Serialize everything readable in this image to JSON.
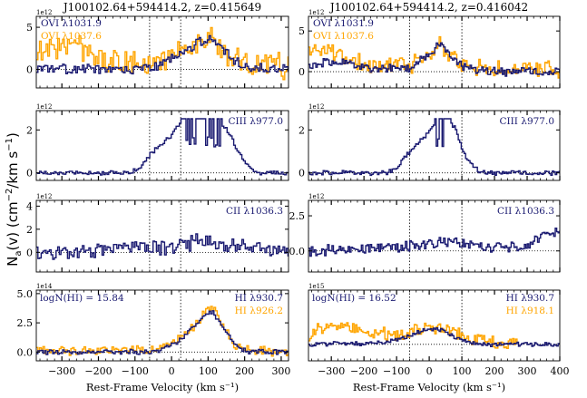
{
  "colors": {
    "primary": "#191970",
    "secondary": "#FFA500",
    "frame": "#000000"
  },
  "chart_data": {
    "type": "line",
    "ylabel": "N_a(v) (cm⁻²/km s⁻¹)",
    "ylabel_parts": {
      "n": "N",
      "a": "a",
      "rest": "(v) (cm",
      "m2": "−2",
      "mid": "/km s",
      "m1": "−1",
      "end": ")"
    },
    "xlabel": "Rest-Frame Velocity (km s⁻¹)",
    "columns": [
      {
        "title": "J100102.64+594414.2, z=0.415649",
        "xlim": [
          -370,
          320
        ],
        "xticks": [
          "-300",
          "-200",
          "-100",
          "0",
          "100",
          "200",
          "300"
        ],
        "vlines": [
          -60,
          25
        ],
        "panels": [
          {
            "ion": "OVI",
            "exp": "1e12",
            "ylim": [
              -2.2,
              6.3
            ],
            "yticks": [
              "0",
              "5"
            ],
            "series": [
              {
                "name": "OVI λ1031.9",
                "color": "primary",
                "profile": [
                  [
                    -370,
                    0
                  ],
                  [
                    -100,
                    0
                  ],
                  [
                    -50,
                    0.3
                  ],
                  [
                    0,
                    1.3
                  ],
                  [
                    40,
                    2.3
                  ],
                  [
                    80,
                    3.4
                  ],
                  [
                    105,
                    3.7
                  ],
                  [
                    130,
                    3.0
                  ],
                  [
                    160,
                    1.4
                  ],
                  [
                    200,
                    0.3
                  ],
                  [
                    320,
                    0
                  ]
                ],
                "noise": 0.65,
                "seed": 11
              },
              {
                "name": "OVI λ1037.6",
                "color": "secondary",
                "profile": [
                  [
                    -370,
                    2.2
                  ],
                  [
                    -280,
                    2.8
                  ],
                  [
                    -200,
                    1.5
                  ],
                  [
                    -100,
                    0.6
                  ],
                  [
                    -30,
                    0.8
                  ],
                  [
                    30,
                    2.2
                  ],
                  [
                    80,
                    3.4
                  ],
                  [
                    110,
                    3.6
                  ],
                  [
                    150,
                    1.8
                  ],
                  [
                    200,
                    0.7
                  ],
                  [
                    320,
                    0.3
                  ]
                ],
                "noise": 1.7,
                "seed": 23
              }
            ]
          },
          {
            "ion": "CIII",
            "exp": "1e12",
            "ylim": [
              -0.35,
              2.9
            ],
            "yticks": [
              "0",
              "2"
            ],
            "series": [
              {
                "name": "CIII λ977.0",
                "color": "primary",
                "profile": [
                  [
                    -370,
                    0
                  ],
                  [
                    -130,
                    0
                  ],
                  [
                    -90,
                    0.2
                  ],
                  [
                    -70,
                    0.7
                  ],
                  [
                    -40,
                    1.2
                  ],
                  [
                    -10,
                    1.6
                  ],
                  [
                    10,
                    2.0
                  ],
                  [
                    30,
                    2.5
                  ],
                  [
                    130,
                    2.5
                  ],
                  [
                    150,
                    2.0
                  ],
                  [
                    180,
                    1.0
                  ],
                  [
                    210,
                    0.3
                  ],
                  [
                    240,
                    0
                  ],
                  [
                    320,
                    0
                  ]
                ],
                "noise": 0.12,
                "seed": 5,
                "sat": 2.52
              }
            ]
          },
          {
            "ion": "CII",
            "exp": "1e12",
            "ylim": [
              -1.7,
              4.5
            ],
            "yticks": [
              "0",
              "2",
              "4"
            ],
            "series": [
              {
                "name": "CII λ1036.3",
                "color": "primary",
                "profile": [
                  [
                    -370,
                    0
                  ],
                  [
                    -200,
                    0.1
                  ],
                  [
                    0,
                    0.4
                  ],
                  [
                    80,
                    1.0
                  ],
                  [
                    130,
                    0.7
                  ],
                  [
                    200,
                    0.4
                  ],
                  [
                    320,
                    0.2
                  ]
                ],
                "noise": 0.8,
                "seed": 41
              }
            ]
          },
          {
            "ion": "HI",
            "exp": "1e14",
            "ylim": [
              -0.75,
              5.3
            ],
            "yticks": [
              "0.0",
              "2.5",
              "5.0"
            ],
            "logn": "logN(HI) = 15.84",
            "series": [
              {
                "name": "HI λ930.7",
                "color": "primary",
                "profile": [
                  [
                    -370,
                    0
                  ],
                  [
                    -50,
                    0
                  ],
                  [
                    -20,
                    0.3
                  ],
                  [
                    20,
                    1.0
                  ],
                  [
                    60,
                    2.2
                  ],
                  [
                    90,
                    3.2
                  ],
                  [
                    110,
                    3.4
                  ],
                  [
                    140,
                    2.0
                  ],
                  [
                    170,
                    0.6
                  ],
                  [
                    200,
                    0.1
                  ],
                  [
                    320,
                    0
                  ]
                ],
                "noise": 0.25,
                "seed": 7
              },
              {
                "name": "HI λ926.2",
                "color": "secondary",
                "profile": [
                  [
                    -370,
                    0.1
                  ],
                  [
                    -50,
                    0.2
                  ],
                  [
                    0,
                    0.7
                  ],
                  [
                    60,
                    2.2
                  ],
                  [
                    90,
                    3.5
                  ],
                  [
                    115,
                    3.8
                  ],
                  [
                    140,
                    2.2
                  ],
                  [
                    170,
                    0.6
                  ],
                  [
                    210,
                    0.1
                  ],
                  [
                    320,
                    0
                  ]
                ],
                "noise": 0.45,
                "seed": 19
              }
            ]
          }
        ]
      },
      {
        "title": "J100102.64+594414.2, z=0.416042",
        "xlim": [
          -370,
          400
        ],
        "xticks": [
          "-300",
          "-200",
          "-100",
          "0",
          "100",
          "200",
          "300",
          "400"
        ],
        "vlines": [
          -60,
          100
        ],
        "panels": [
          {
            "ion": "OVI",
            "exp": "1e12",
            "ylim": [
              -2.0,
              6.8
            ],
            "yticks": [
              "0",
              "5"
            ],
            "series": [
              {
                "name": "OVI λ1031.9",
                "color": "primary",
                "profile": [
                  [
                    -370,
                    0.8
                  ],
                  [
                    -300,
                    1.2
                  ],
                  [
                    -150,
                    0.3
                  ],
                  [
                    -60,
                    0.5
                  ],
                  [
                    0,
                    2.2
                  ],
                  [
                    30,
                    3.4
                  ],
                  [
                    60,
                    2.2
                  ],
                  [
                    100,
                    0.7
                  ],
                  [
                    150,
                    0
                  ],
                  [
                    400,
                    0
                  ]
                ],
                "noise": 0.6,
                "seed": 13
              },
              {
                "name": "OVI λ1037.6",
                "color": "secondary",
                "profile": [
                  [
                    -370,
                    2.5
                  ],
                  [
                    -320,
                    3.0
                  ],
                  [
                    -250,
                    1.5
                  ],
                  [
                    -150,
                    0.6
                  ],
                  [
                    -50,
                    1.0
                  ],
                  [
                    0,
                    2.5
                  ],
                  [
                    30,
                    3.3
                  ],
                  [
                    70,
                    1.6
                  ],
                  [
                    120,
                    0.5
                  ],
                  [
                    400,
                    0.2
                  ]
                ],
                "noise": 1.2,
                "seed": 29
              }
            ]
          },
          {
            "ion": "CIII",
            "exp": "1e12",
            "ylim": [
              -0.35,
              2.9
            ],
            "yticks": [
              "0",
              "2"
            ],
            "series": [
              {
                "name": "CIII λ977.0",
                "color": "primary",
                "profile": [
                  [
                    -370,
                    0
                  ],
                  [
                    -130,
                    0
                  ],
                  [
                    -100,
                    0.2
                  ],
                  [
                    -80,
                    0.7
                  ],
                  [
                    -50,
                    1.2
                  ],
                  [
                    -20,
                    1.6
                  ],
                  [
                    0,
                    2.0
                  ],
                  [
                    20,
                    2.5
                  ],
                  [
                    60,
                    2.5
                  ],
                  [
                    80,
                    2.0
                  ],
                  [
                    100,
                    1.0
                  ],
                  [
                    130,
                    0.3
                  ],
                  [
                    160,
                    0
                  ],
                  [
                    400,
                    0
                  ]
                ],
                "noise": 0.12,
                "seed": 3,
                "sat": 2.52
              }
            ]
          },
          {
            "ion": "CII",
            "exp": "1e12",
            "ylim": [
              -1.5,
              3.6
            ],
            "yticks": [
              "0.0",
              "2.5"
            ],
            "series": [
              {
                "name": "CII λ1036.3",
                "color": "primary",
                "profile": [
                  [
                    -370,
                    0
                  ],
                  [
                    -200,
                    0.1
                  ],
                  [
                    0,
                    0.5
                  ],
                  [
                    80,
                    0.6
                  ],
                  [
                    200,
                    0.2
                  ],
                  [
                    300,
                    0.4
                  ],
                  [
                    360,
                    1.5
                  ],
                  [
                    400,
                    1.3
                  ]
                ],
                "noise": 0.45,
                "seed": 37
              }
            ]
          },
          {
            "ion": "HI",
            "exp": "1e15",
            "ylim": [
              -0.35,
              1.15
            ],
            "yticks": [],
            "logn": "logN(HI) = 16.52",
            "series": [
              {
                "name": "HI λ930.7",
                "color": "primary",
                "profile": [
                  [
                    -370,
                    0
                  ],
                  [
                    -200,
                    0.02
                  ],
                  [
                    -100,
                    0.08
                  ],
                  [
                    -50,
                    0.22
                  ],
                  [
                    0,
                    0.33
                  ],
                  [
                    40,
                    0.3
                  ],
                  [
                    80,
                    0.15
                  ],
                  [
                    120,
                    0.05
                  ],
                  [
                    160,
                    0
                  ],
                  [
                    400,
                    0
                  ]
                ],
                "noise": 0.05,
                "seed": 9
              },
              {
                "name": "HI λ918.1",
                "color": "secondary",
                "profile": [
                  [
                    -370,
                    0.2
                  ],
                  [
                    -300,
                    0.45
                  ],
                  [
                    -200,
                    0.25
                  ],
                  [
                    -100,
                    0.2
                  ],
                  [
                    0,
                    0.35
                  ],
                  [
                    50,
                    0.3
                  ],
                  [
                    120,
                    0.15
                  ],
                  [
                    200,
                    0.05
                  ],
                  [
                    270,
                    0
                  ]
                ],
                "noise": 0.16,
                "seed": 17,
                "xend": 270
              }
            ]
          }
        ]
      }
    ]
  }
}
